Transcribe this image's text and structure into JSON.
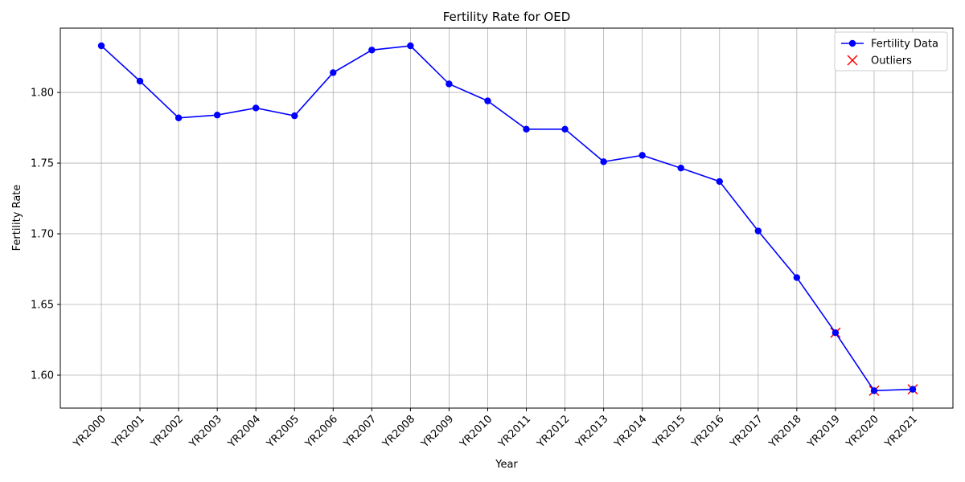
{
  "chart_data": {
    "type": "line",
    "title": "Fertility Rate for OED",
    "x_label": "Year",
    "y_label": "Fertility Rate",
    "categories": [
      "YR2000",
      "YR2001",
      "YR2002",
      "YR2003",
      "YR2004",
      "YR2005",
      "YR2006",
      "YR2007",
      "YR2008",
      "YR2009",
      "YR2010",
      "YR2011",
      "YR2012",
      "YR2013",
      "YR2014",
      "YR2015",
      "YR2016",
      "YR2017",
      "YR2018",
      "YR2019",
      "YR2020",
      "YR2021"
    ],
    "series": [
      {
        "name": "Fertility Data",
        "color": "#0000ff",
        "marker": "circle",
        "values": [
          1.833,
          1.808,
          1.782,
          1.784,
          1.789,
          1.7835,
          1.814,
          1.83,
          1.833,
          1.806,
          1.794,
          1.774,
          1.774,
          1.751,
          1.7555,
          1.7465,
          1.737,
          1.702,
          1.669,
          1.63,
          1.589,
          1.59
        ]
      },
      {
        "name": "Outliers",
        "color": "#ff0000",
        "marker": "x",
        "values": [
          null,
          null,
          null,
          null,
          null,
          null,
          null,
          null,
          null,
          null,
          null,
          null,
          null,
          null,
          null,
          null,
          null,
          null,
          null,
          1.63,
          1.589,
          1.59
        ]
      }
    ],
    "ylim": [
      1.5767,
      1.8455
    ],
    "yticks": [
      {
        "value": 1.6,
        "label": "1.60"
      },
      {
        "value": 1.65,
        "label": "1.65"
      },
      {
        "value": 1.7,
        "label": "1.70"
      },
      {
        "value": 1.75,
        "label": "1.75"
      },
      {
        "value": 1.8,
        "label": "1.80"
      }
    ],
    "grid": true,
    "legend": "upper right"
  }
}
